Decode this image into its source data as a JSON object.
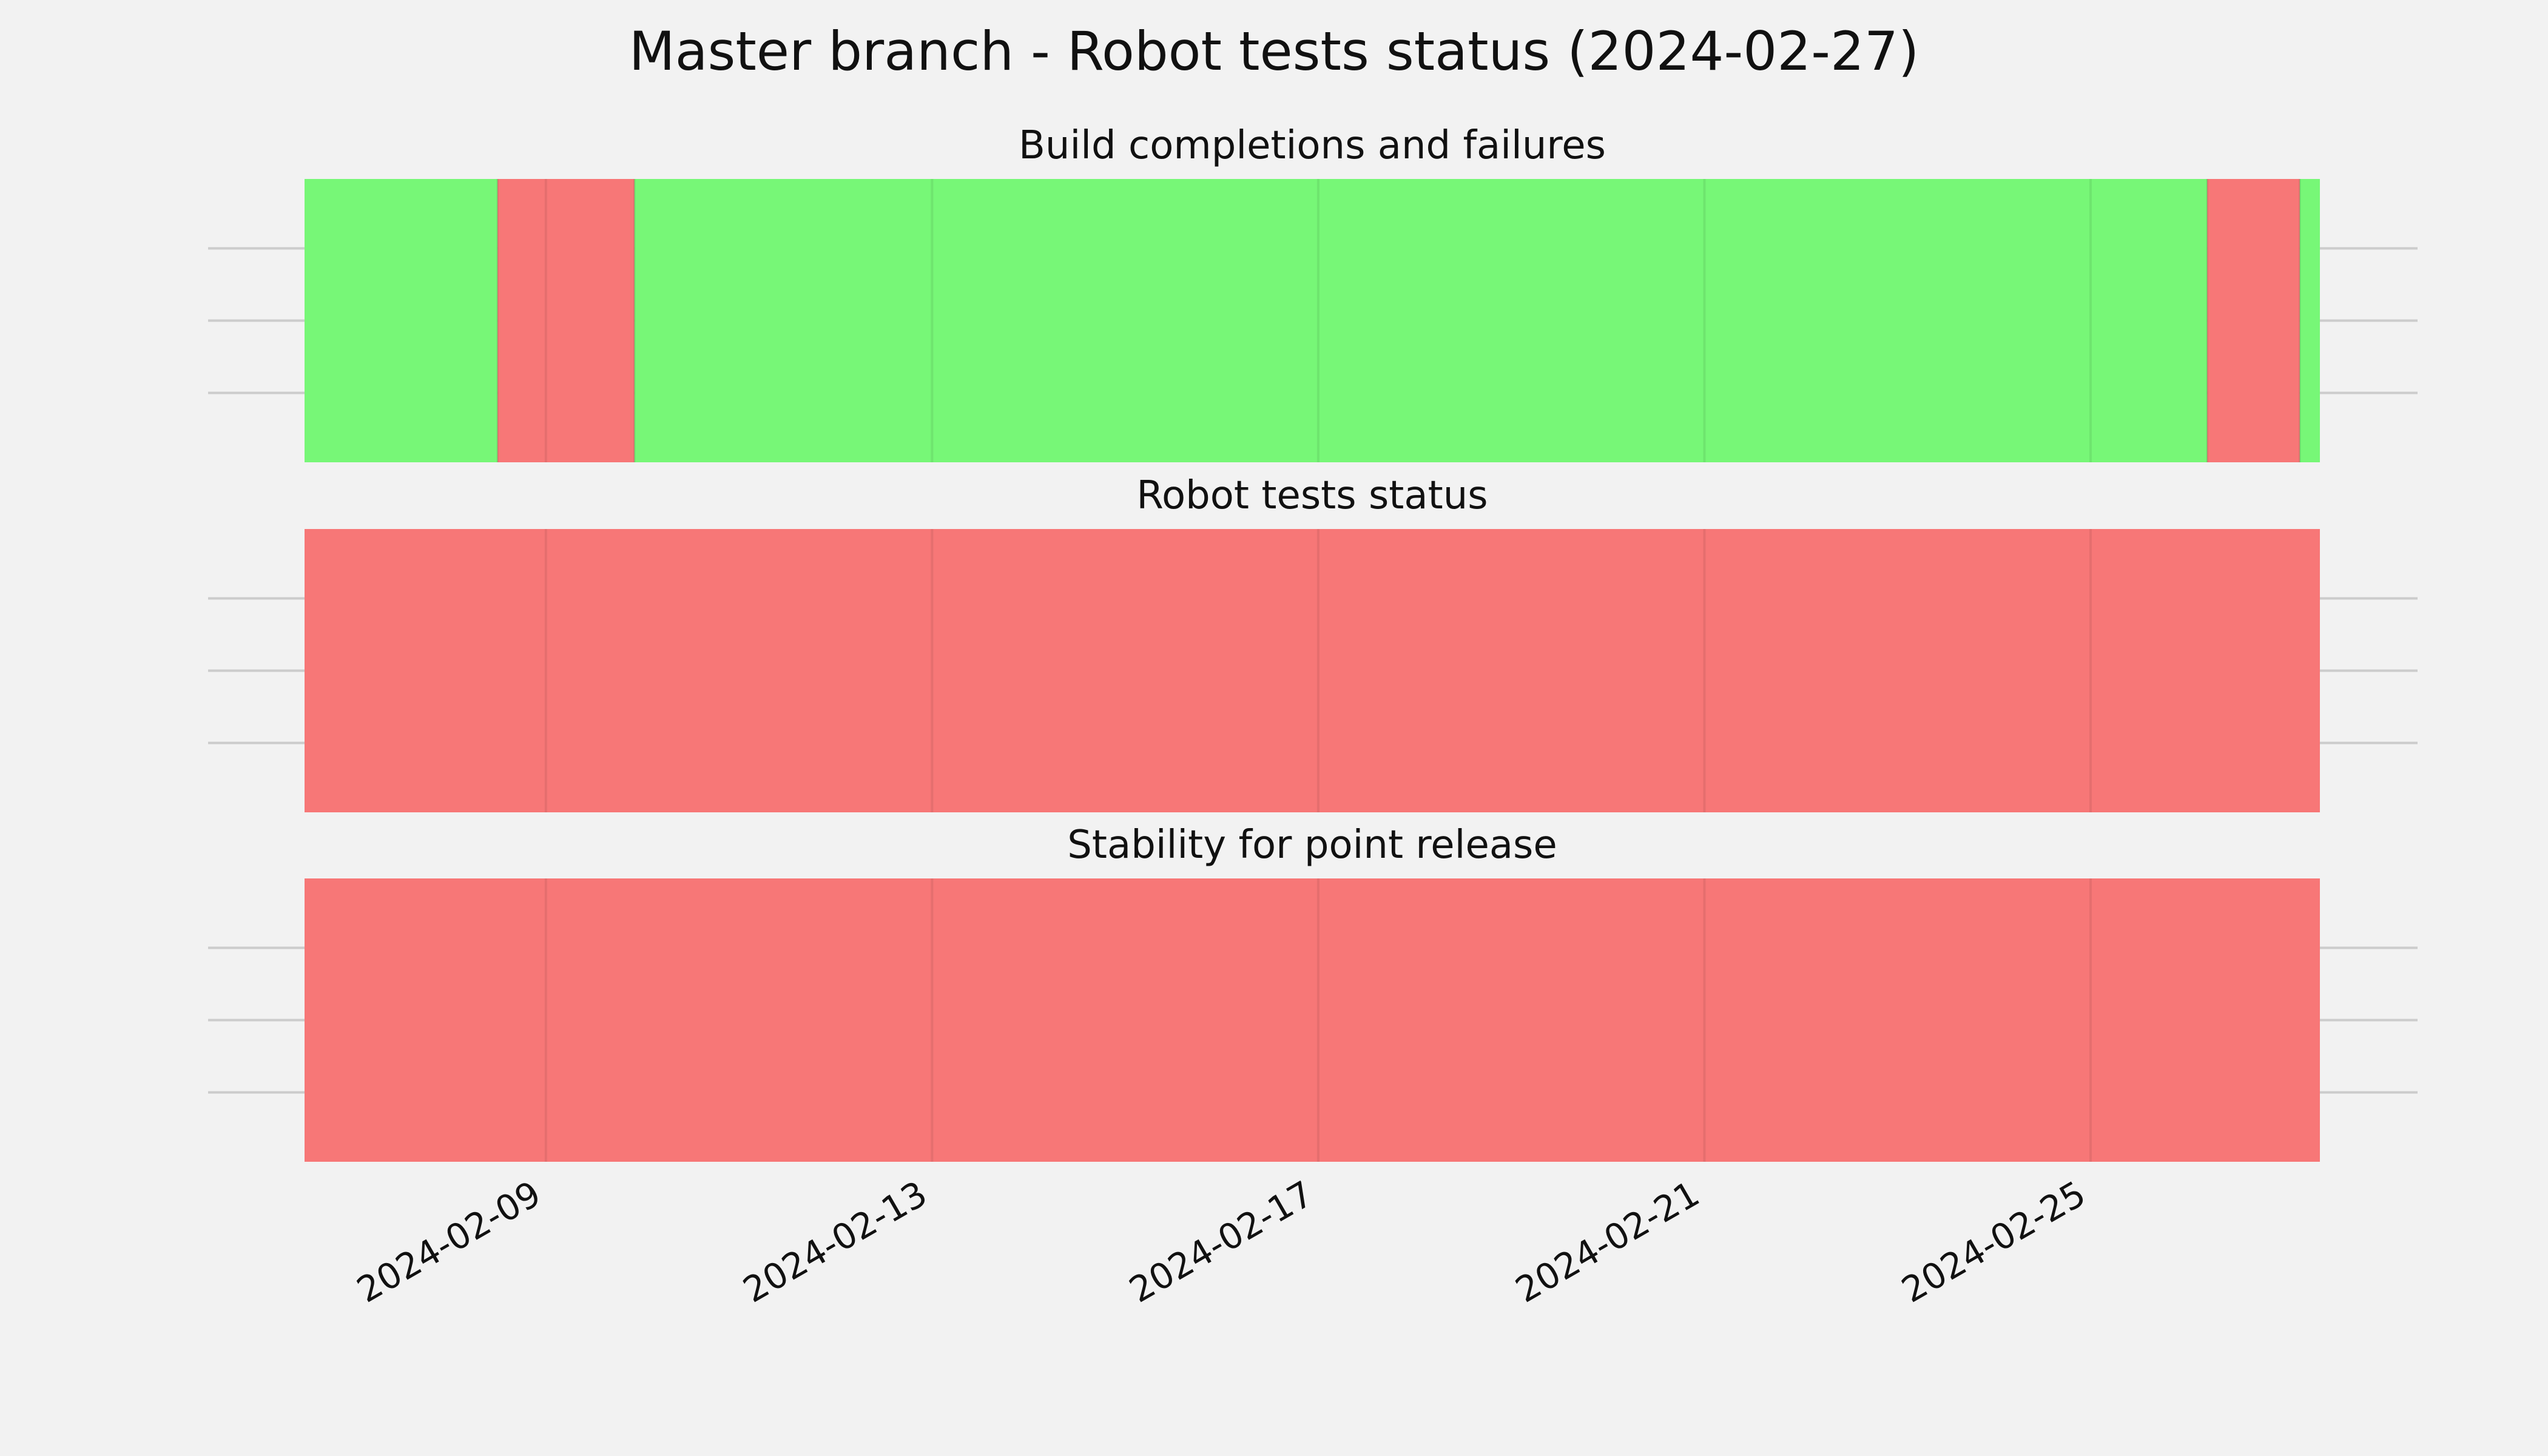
{
  "chart_data": {
    "type": "timeline",
    "title": "Master branch - Robot tests status (2024-02-27)",
    "x_range": [
      "2024-02-06T12:00",
      "2024-02-27T09:00"
    ],
    "x_ticks": [
      "2024-02-09",
      "2024-02-13",
      "2024-02-17",
      "2024-02-21",
      "2024-02-25"
    ],
    "grid": true,
    "colors": {
      "pass": "#77f777",
      "fail": "#f77777"
    },
    "panels": [
      {
        "title": "Build completions and failures",
        "segments": [
          {
            "start": "2024-02-06T12:00",
            "end": "2024-02-08T12:00",
            "status": "pass"
          },
          {
            "start": "2024-02-08T12:00",
            "end": "2024-02-09T22:00",
            "status": "fail"
          },
          {
            "start": "2024-02-09T22:00",
            "end": "2024-02-26T05:00",
            "status": "pass"
          },
          {
            "start": "2024-02-26T05:00",
            "end": "2024-02-27T04:00",
            "status": "fail"
          },
          {
            "start": "2024-02-27T04:00",
            "end": "2024-02-27T09:00",
            "status": "pass"
          }
        ]
      },
      {
        "title": "Robot tests status",
        "segments": [
          {
            "start": "2024-02-06T12:00",
            "end": "2024-02-27T09:00",
            "status": "fail"
          }
        ]
      },
      {
        "title": "Stability for point release",
        "segments": [
          {
            "start": "2024-02-06T12:00",
            "end": "2024-02-27T09:00",
            "status": "fail"
          }
        ]
      }
    ]
  }
}
